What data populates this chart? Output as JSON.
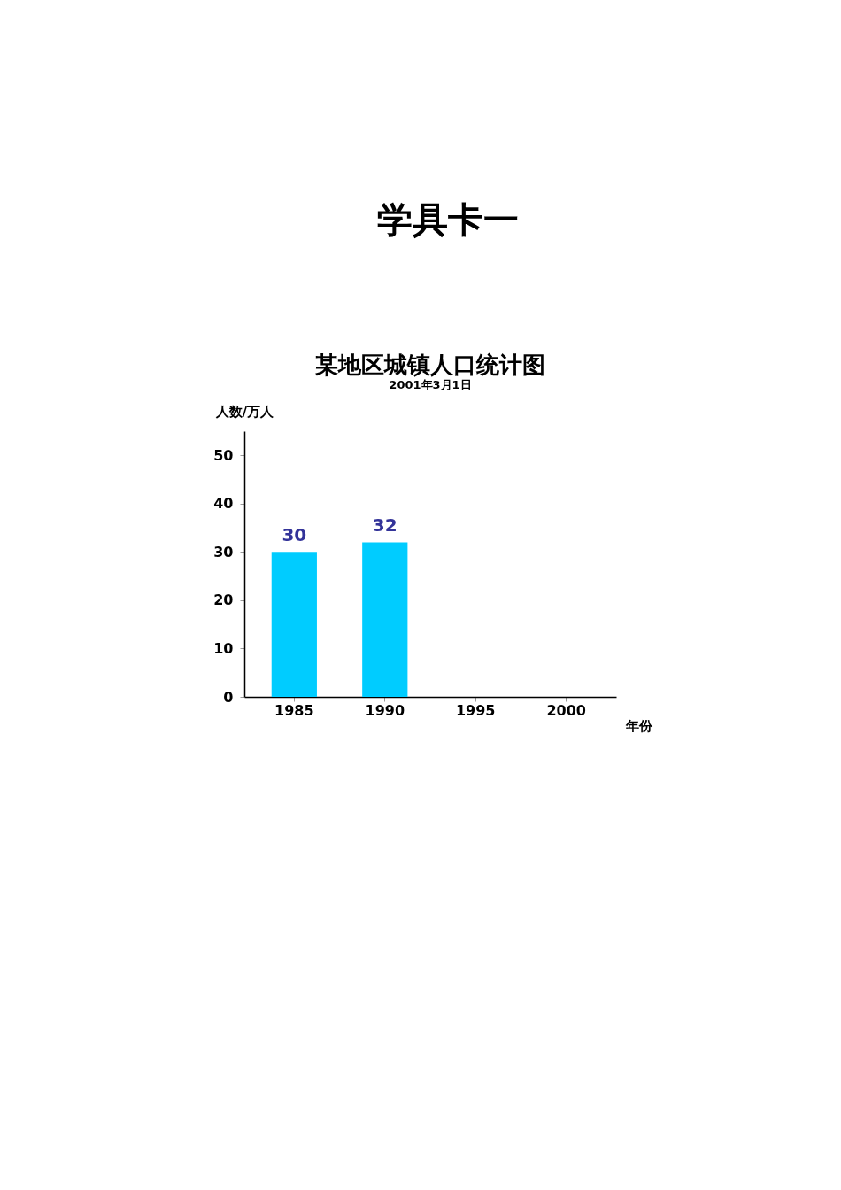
{
  "chart_data": {
    "type": "bar",
    "title": "某地区城镇人口统计图",
    "subtitle": "2001年3月1日",
    "annotations": [
      "学具卡一"
    ],
    "xlabel": "年份",
    "ylabel": "人数/万人",
    "categories": [
      "1985",
      "1990",
      "1995",
      "2000"
    ],
    "values": [
      30,
      32,
      null,
      null
    ],
    "color": "#00ccff",
    "ylim": [
      0,
      55
    ],
    "yticks": [
      0,
      10,
      20,
      30,
      40,
      50
    ],
    "data_labels": true,
    "grid": false
  }
}
